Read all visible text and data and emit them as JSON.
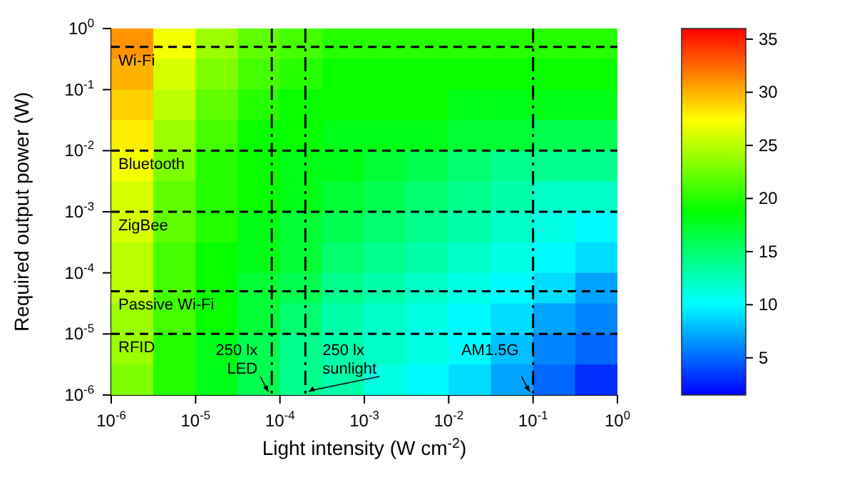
{
  "chart_data": {
    "type": "scatter",
    "marker": "square",
    "xlabel": "Light intensity (W cm$^{-2}$)",
    "ylabel": "Required output power (W)",
    "log": "xy",
    "xlim": [
      1e-06,
      1
    ],
    "ylim": [
      1e-06,
      1
    ],
    "xticks": [
      {
        "value": 1e-06,
        "label": "10$^{-6}$"
      },
      {
        "value": 1e-05,
        "label": "10$^{-5}$"
      },
      {
        "value": 0.0001,
        "label": "10$^{-4}$"
      },
      {
        "value": 0.001,
        "label": "10$^{-3}$"
      },
      {
        "value": 0.01,
        "label": "10$^{-2}$"
      },
      {
        "value": 0.1,
        "label": "10$^{-1}$"
      },
      {
        "value": 1,
        "label": "10$^{0}$"
      }
    ],
    "yticks": [
      {
        "value": 1e-06,
        "label": "10$^{-6}$"
      },
      {
        "value": 1e-05,
        "label": "10$^{-5}$"
      },
      {
        "value": 0.0001,
        "label": "10$^{-4}$"
      },
      {
        "value": 0.001,
        "label": "10$^{-3}$"
      },
      {
        "value": 0.01,
        "label": "10$^{-2}$"
      },
      {
        "value": 0.1,
        "label": "10$^{-1}$"
      },
      {
        "value": 1,
        "label": "10$^{0}$"
      }
    ],
    "x": [
      1.78e-06,
      5.62e-06,
      1.78e-05,
      5.62e-05,
      0.000178,
      0.000562,
      0.00178,
      0.00562,
      0.0178,
      0.0562,
      0.178,
      0.562,
      1.78e-06,
      5.62e-06,
      1.78e-05,
      5.62e-05,
      0.000178,
      0.000562,
      0.00178,
      0.00562,
      0.0178,
      0.0562,
      0.178,
      0.562,
      1.78e-06,
      5.62e-06,
      1.78e-05,
      5.62e-05,
      0.000178,
      0.000562,
      0.00178,
      0.00562,
      0.0178,
      0.0562,
      0.178,
      0.562,
      1.78e-06,
      5.62e-06,
      1.78e-05,
      5.62e-05,
      0.000178,
      0.000562,
      0.00178,
      0.00562,
      0.0178,
      0.0562,
      0.178,
      0.562,
      1.78e-06,
      5.62e-06,
      1.78e-05,
      5.62e-05,
      0.000178,
      0.000562,
      0.00178,
      0.00562,
      0.0178,
      0.0562,
      0.178,
      0.562,
      1.78e-06,
      5.62e-06,
      1.78e-05,
      5.62e-05,
      0.000178,
      0.000562,
      0.00178,
      0.00562,
      0.0178,
      0.0562,
      0.178,
      0.562,
      1.78e-06,
      5.62e-06,
      1.78e-05,
      5.62e-05,
      0.000178,
      0.000562,
      0.00178,
      0.00562,
      0.0178,
      0.0562,
      0.178,
      0.562,
      1.78e-06,
      5.62e-06,
      1.78e-05,
      5.62e-05,
      0.000178,
      0.000562,
      0.00178,
      0.00562,
      0.0178,
      0.0562,
      0.178,
      0.562,
      1.78e-06,
      5.62e-06,
      1.78e-05,
      5.62e-05,
      0.000178,
      0.000562,
      0.00178,
      0.00562,
      0.0178,
      0.0562,
      0.178,
      0.562,
      1.78e-06,
      5.62e-06,
      1.78e-05,
      5.62e-05,
      0.000178,
      0.000562,
      0.00178,
      0.00562,
      0.0178,
      0.0562,
      0.178,
      0.562,
      1.78e-06,
      5.62e-06,
      1.78e-05,
      5.62e-05,
      0.000178,
      0.000562,
      0.00178,
      0.00562,
      0.0178,
      0.0562,
      0.178,
      0.562,
      1.78e-06,
      5.62e-06,
      1.78e-05,
      5.62e-05,
      0.000178,
      0.000562,
      0.00178,
      0.00562,
      0.0178,
      0.0562,
      0.178,
      0.562
    ],
    "values": [
      0.562,
      0.562,
      0.562,
      0.562,
      0.562,
      0.562,
      0.562,
      0.562,
      0.562,
      0.562,
      0.562,
      0.562,
      0.178,
      0.178,
      0.178,
      0.178,
      0.178,
      0.178,
      0.178,
      0.178,
      0.178,
      0.178,
      0.178,
      0.178,
      0.0562,
      0.0562,
      0.0562,
      0.0562,
      0.0562,
      0.0562,
      0.0562,
      0.0562,
      0.0562,
      0.0562,
      0.0562,
      0.0562,
      0.0178,
      0.0178,
      0.0178,
      0.0178,
      0.0178,
      0.0178,
      0.0178,
      0.0178,
      0.0178,
      0.0178,
      0.0178,
      0.0178,
      0.00562,
      0.00562,
      0.00562,
      0.00562,
      0.00562,
      0.00562,
      0.00562,
      0.00562,
      0.00562,
      0.00562,
      0.00562,
      0.00562,
      0.00178,
      0.00178,
      0.00178,
      0.00178,
      0.00178,
      0.00178,
      0.00178,
      0.00178,
      0.00178,
      0.00178,
      0.00178,
      0.00178,
      0.000562,
      0.000562,
      0.000562,
      0.000562,
      0.000562,
      0.000562,
      0.000562,
      0.000562,
      0.000562,
      0.000562,
      0.000562,
      0.000562,
      0.000178,
      0.000178,
      0.000178,
      0.000178,
      0.000178,
      0.000178,
      0.000178,
      0.000178,
      0.000178,
      0.000178,
      0.000178,
      0.000178,
      5.62e-05,
      5.62e-05,
      5.62e-05,
      5.62e-05,
      5.62e-05,
      5.62e-05,
      5.62e-05,
      5.62e-05,
      5.62e-05,
      5.62e-05,
      5.62e-05,
      5.62e-05,
      1.78e-05,
      1.78e-05,
      1.78e-05,
      1.78e-05,
      1.78e-05,
      1.78e-05,
      1.78e-05,
      1.78e-05,
      1.78e-05,
      1.78e-05,
      1.78e-05,
      1.78e-05,
      5.62e-06,
      5.62e-06,
      5.62e-06,
      5.62e-06,
      5.62e-06,
      5.62e-06,
      5.62e-06,
      5.62e-06,
      5.62e-06,
      5.62e-06,
      5.62e-06,
      5.62e-06,
      1.78e-06,
      1.78e-06,
      1.78e-06,
      1.78e-06,
      1.78e-06,
      1.78e-06,
      1.78e-06,
      1.78e-06,
      1.78e-06,
      1.78e-06,
      1.78e-06,
      1.78e-06
    ],
    "cvalues": [
      31,
      27,
      24,
      22,
      21,
      20,
      20,
      20,
      20,
      20,
      20,
      20,
      30,
      26,
      23,
      21,
      20,
      19,
      19,
      19,
      19,
      19,
      19,
      19,
      29,
      25,
      22,
      20,
      19,
      19,
      19,
      19,
      18,
      18,
      18,
      18,
      28,
      24,
      21,
      19,
      19,
      18,
      18,
      18,
      17,
      17,
      16,
      16,
      27,
      23,
      20,
      19,
      18,
      18,
      17,
      16,
      15,
      14,
      14,
      14,
      26,
      22,
      20,
      19,
      18,
      17,
      16,
      15,
      14,
      13,
      12,
      12,
      26,
      22,
      20,
      18,
      17,
      16,
      15,
      14,
      13,
      12,
      11,
      10,
      25,
      21,
      19,
      18,
      17,
      15,
      14,
      13,
      12,
      11,
      10,
      9,
      25,
      21,
      19,
      17,
      16,
      14,
      13,
      12,
      11,
      10,
      9,
      7,
      24,
      21,
      19,
      17,
      15,
      13,
      12,
      11,
      10,
      9,
      7,
      6,
      24,
      20,
      18,
      16,
      14,
      13,
      12,
      11,
      10,
      8,
      6,
      5,
      23,
      20,
      18,
      16,
      14,
      13,
      11,
      10,
      9,
      7,
      5,
      3
    ],
    "clim": [
      1.5,
      36
    ],
    "cticks": [
      5,
      10,
      15,
      20,
      25,
      30,
      35
    ],
    "ref_lines": [
      {
        "axis": "y",
        "value": 0.5,
        "label": "Wi-Fi",
        "line_style": "dashed"
      },
      {
        "axis": "y",
        "value": 0.01,
        "label": "Bluetooth",
        "line_style": "dashed"
      },
      {
        "axis": "y",
        "value": 0.001,
        "label": "ZigBee",
        "line_style": "dashed"
      },
      {
        "axis": "y",
        "value": 5e-05,
        "label": "Passive Wi-Fi",
        "line_style": "dashed"
      },
      {
        "axis": "y",
        "value": 1e-05,
        "label": "RFID",
        "line_style": "dashed"
      },
      {
        "axis": "x",
        "value": 8e-05,
        "label": "250 lx LED",
        "line_style": "dashdot"
      },
      {
        "axis": "x",
        "value": 0.0002,
        "label": "250 lx sunlight",
        "line_style": "dashdot"
      },
      {
        "axis": "x",
        "value": 0.1,
        "label": "AM1.5G",
        "line_style": "dashdot"
      }
    ]
  }
}
